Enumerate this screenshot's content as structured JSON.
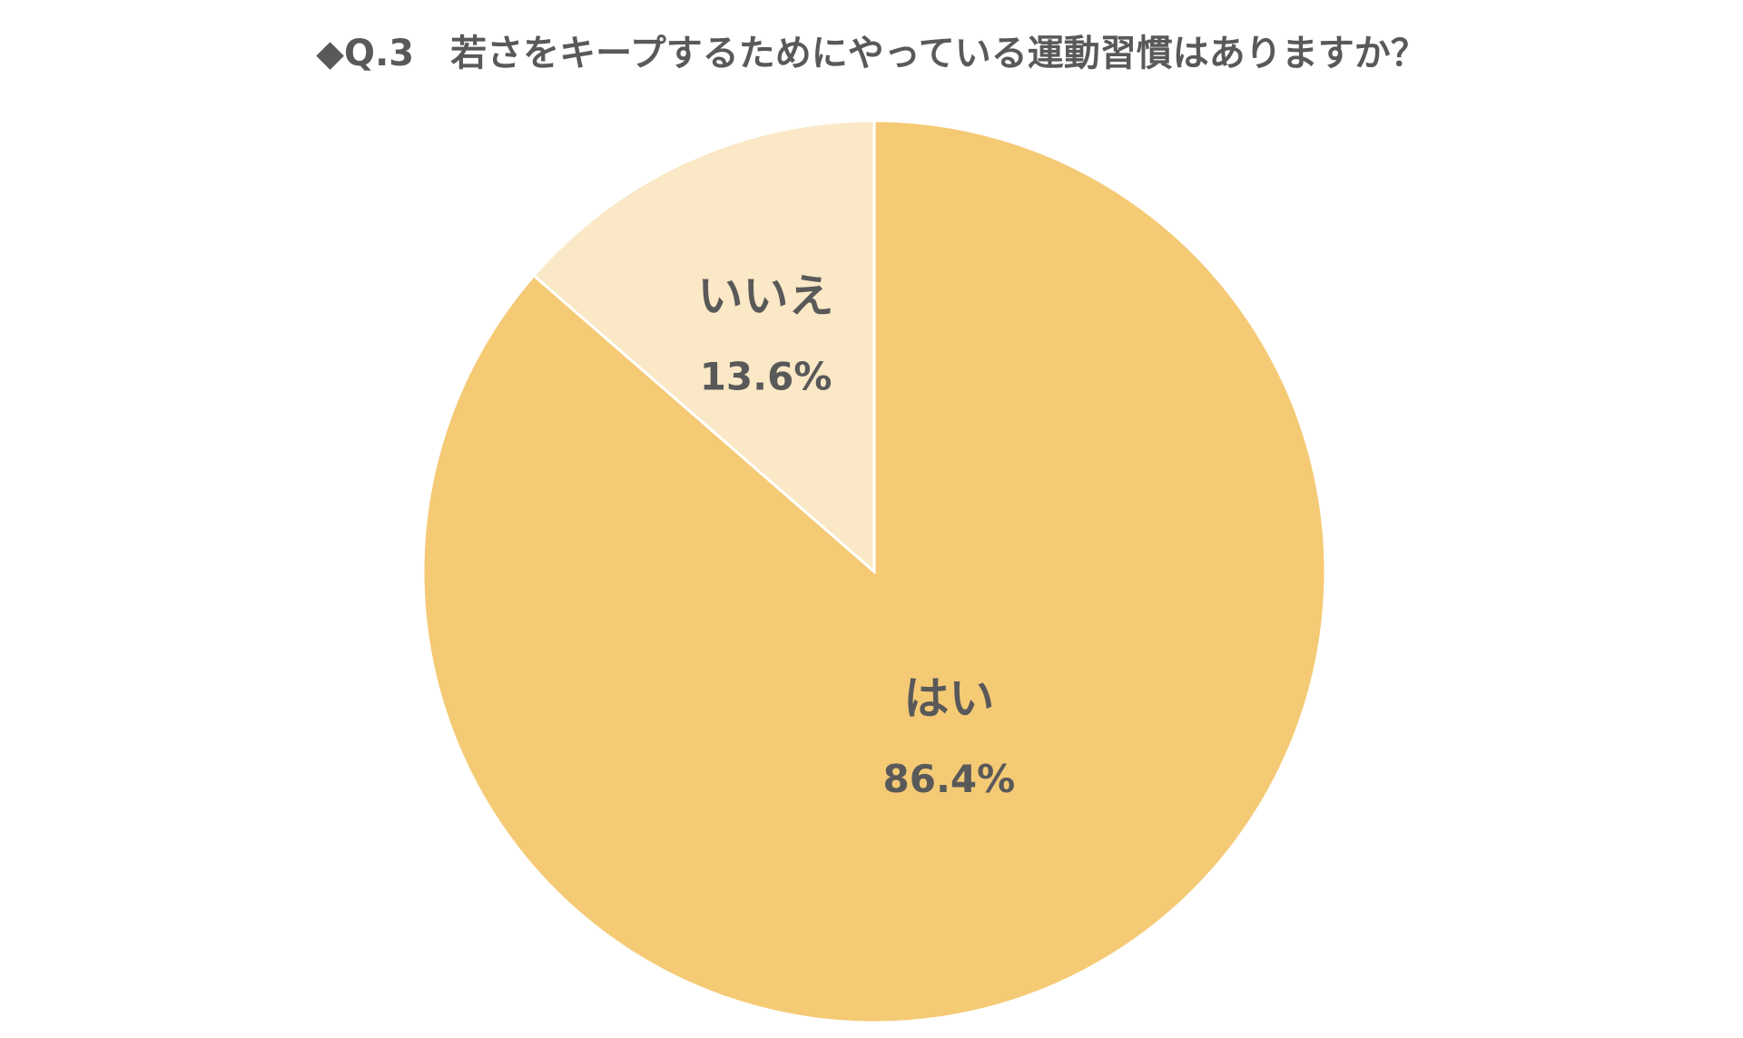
{
  "chart_data": {
    "type": "pie",
    "title": "◆Q.3　若さをキープするためにやっている運動習慣はありますか？",
    "start": "12 o'clock",
    "direction": "clockwise",
    "slice_border_color": "#ffffff",
    "slices": [
      {
        "label": "はい",
        "value": 86.4,
        "value_label": "86.4%",
        "color": "#F5CA75"
      },
      {
        "label": "いいえ",
        "value": 13.6,
        "value_label": "13.6%",
        "color": "#FAE8C6"
      }
    ]
  }
}
